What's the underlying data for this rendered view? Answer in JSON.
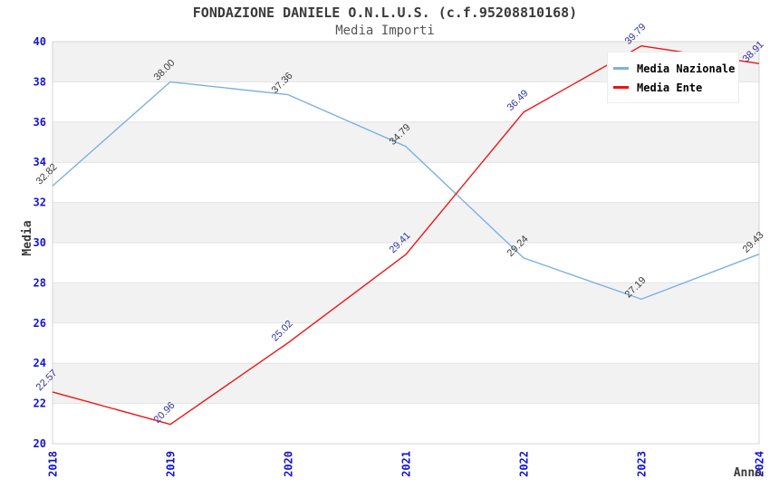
{
  "title": "FONDAZIONE DANIELE O.N.L.U.S. (c.f.95208810168)",
  "subtitle": "Media Importi",
  "legend": {
    "position": "top-right",
    "items": [
      {
        "label": "Media Nazionale",
        "color": "#7cb0e4"
      },
      {
        "label": "Media Ente",
        "color": "#ee1414"
      }
    ]
  },
  "axes": {
    "y_ticks": [
      20,
      22,
      24,
      26,
      28,
      30,
      32,
      34,
      36,
      38,
      40
    ],
    "x_ticks": [
      "2018",
      "2019",
      "2020",
      "2021",
      "2022",
      "2023",
      "2024"
    ],
    "tick_color": "#1414d2"
  },
  "colors": {
    "plot_band_gray": "#f2f2f2",
    "plot_band_white": "#ffffff",
    "gridline": "#e3e3e3",
    "plot_border": "#d4d4d4",
    "title_text": "#3a3a3a",
    "nazionale_line": "#7cb0e4",
    "ente_line": "#ee1414",
    "nazionale_label": "#3d3d3d",
    "ente_label": "#333399"
  },
  "chart_data": {
    "type": "line",
    "title": "FONDAZIONE DANIELE O.N.L.U.S. (c.f.95208810168)",
    "subtitle": "Media Importi",
    "xlabel": "Anno",
    "ylabel": "Media",
    "x": [
      "2018",
      "2019",
      "2020",
      "2021",
      "2022",
      "2023",
      "2024"
    ],
    "series": [
      {
        "name": "Media Nazionale",
        "color": "#7cb0e4",
        "label_color": "#3d3d3d",
        "values": [
          32.82,
          38.0,
          37.36,
          34.79,
          29.24,
          27.19,
          29.43
        ]
      },
      {
        "name": "Media Ente",
        "color": "#ee1414",
        "label_color": "#333399",
        "values": [
          22.57,
          20.96,
          25.02,
          29.41,
          36.49,
          39.79,
          38.91
        ]
      }
    ],
    "ylim": [
      20,
      40
    ],
    "ytick_step": 2,
    "grid": "horizontal gridlines with alternating gray/white bands",
    "legend_position": "top-right",
    "point_labels": "each point labeled with value, rotated 45deg"
  }
}
